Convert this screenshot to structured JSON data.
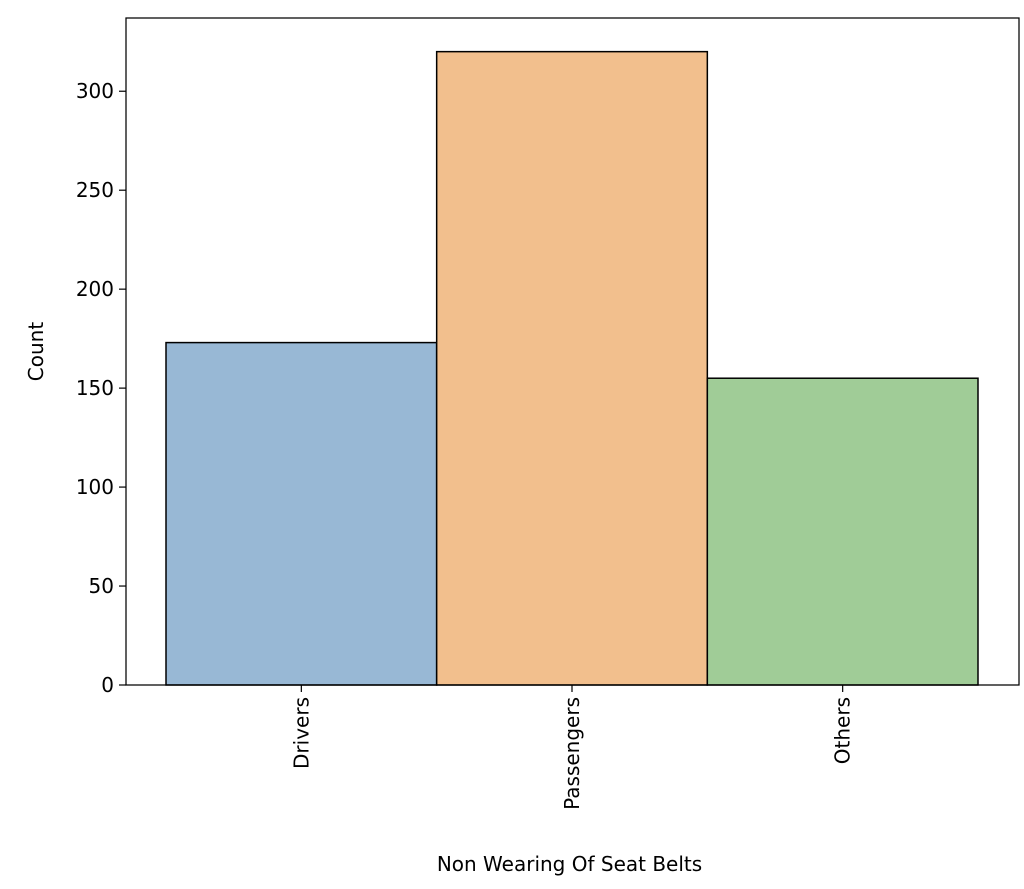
{
  "chart_data": {
    "type": "bar",
    "title": "",
    "xlabel": "Non Wearing Of Seat Belts",
    "ylabel": "Count",
    "categories": [
      "Drivers",
      "Passengers",
      "Others"
    ],
    "values": [
      173,
      320,
      155
    ],
    "colors": [
      "#98b8d5",
      "#f2bf8d",
      "#a0cc97"
    ],
    "edge_color": "#000000",
    "ylim": [
      0,
      337
    ],
    "yticks": [
      0,
      50,
      100,
      150,
      200,
      250,
      300
    ],
    "grid": false,
    "legend": "none"
  }
}
